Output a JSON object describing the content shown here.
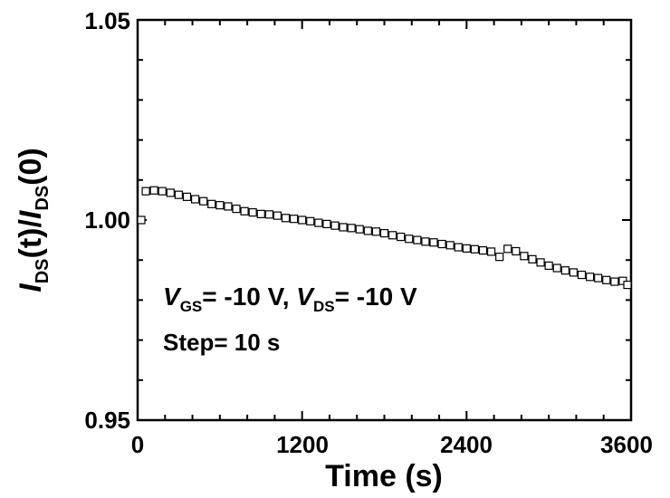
{
  "chart_data": {
    "type": "scatter",
    "xlabel": "Time (s)",
    "ylabel": {
      "i1": "I",
      "s1": "DS",
      "mid": "(t)/",
      "i2": "I",
      "s2": "DS",
      "end": "(0)"
    },
    "xlim": [
      0,
      3600
    ],
    "ylim": [
      0.95,
      1.05
    ],
    "x_ticks": [
      "0",
      "1200",
      "2400",
      "3600"
    ],
    "y_ticks": [
      "0.95",
      "1.00",
      "1.05"
    ],
    "grid": false,
    "marker": "open-square",
    "annotations": {
      "line1": {
        "v1": "V",
        "gs": "GS",
        "eq1": "= -10 V, ",
        "v2": "V",
        "ds": "DS",
        "eq2": "= -10 V"
      },
      "line2": "Step= 10 s"
    },
    "series": [
      {
        "x": [
          0,
          60,
          120,
          180,
          240,
          300,
          360,
          420,
          480,
          540,
          600,
          660,
          720,
          780,
          840,
          900,
          960,
          1020,
          1080,
          1140,
          1200,
          1260,
          1320,
          1380,
          1440,
          1500,
          1560,
          1620,
          1680,
          1740,
          1800,
          1860,
          1920,
          1980,
          2040,
          2100,
          2160,
          2220,
          2280,
          2340,
          2400,
          2460,
          2520,
          2580,
          2640,
          2700,
          2760,
          2820,
          2880,
          2940,
          3000,
          3060,
          3120,
          3180,
          3240,
          3300,
          3360,
          3420,
          3480,
          3540,
          3600
        ],
        "y": [
          1.0,
          1.0072,
          1.0074,
          1.0072,
          1.0068,
          1.0063,
          1.0058,
          1.0052,
          1.0047,
          1.004,
          1.0037,
          1.0034,
          1.0028,
          1.0022,
          1.0019,
          1.0015,
          1.0014,
          1.0011,
          1.0005,
          1.0003,
          1.0,
          0.9997,
          0.9993,
          0.999,
          0.9986,
          0.9982,
          0.998,
          0.9977,
          0.9973,
          0.9971,
          0.9967,
          0.9962,
          0.9958,
          0.9953,
          0.995,
          0.9946,
          0.9944,
          0.994,
          0.9937,
          0.9932,
          0.9929,
          0.9927,
          0.9924,
          0.9921,
          0.9908,
          0.9928,
          0.9922,
          0.991,
          0.9902,
          0.9894,
          0.9886,
          0.988,
          0.9874,
          0.9869,
          0.9863,
          0.9858,
          0.9855,
          0.985,
          0.9846,
          0.9848,
          0.9838
        ]
      }
    ]
  }
}
